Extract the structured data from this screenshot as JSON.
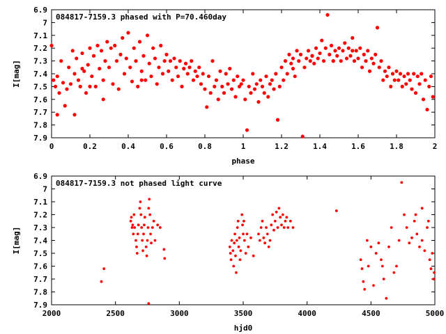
{
  "chart_data": [
    {
      "type": "scatter",
      "title": "084817-7159.3 phased with P=70.460day",
      "xlabel": "phase",
      "ylabel": "I[mag]",
      "xlim": [
        0,
        2
      ],
      "ylim": [
        6.9,
        7.9
      ],
      "y_inverted": true,
      "grid": false,
      "color": "#ff0000",
      "x_ticks": [
        "0",
        "0.2",
        "0.4",
        "0.6",
        "0.8",
        "1",
        "1.2",
        "1.4",
        "1.6",
        "1.8",
        "2"
      ],
      "y_ticks": [
        "6.9",
        "7",
        "7.1",
        "7.2",
        "7.3",
        "7.4",
        "7.5",
        "7.6",
        "7.7",
        "7.8",
        "7.9"
      ],
      "points": [
        [
          0.0,
          7.18
        ],
        [
          0.01,
          7.45
        ],
        [
          0.02,
          7.5
        ],
        [
          0.03,
          7.42
        ],
        [
          0.04,
          7.55
        ],
        [
          0.05,
          7.3
        ],
        [
          0.06,
          7.47
        ],
        [
          0.07,
          7.65
        ],
        [
          0.08,
          7.52
        ],
        [
          0.09,
          7.35
        ],
        [
          0.1,
          7.48
        ],
        [
          0.11,
          7.22
        ],
        [
          0.12,
          7.4
        ],
        [
          0.13,
          7.28
        ],
        [
          0.14,
          7.45
        ],
        [
          0.15,
          7.5
        ],
        [
          0.16,
          7.24
        ],
        [
          0.17,
          7.38
        ],
        [
          0.18,
          7.55
        ],
        [
          0.19,
          7.33
        ],
        [
          0.2,
          7.2
        ],
        [
          0.21,
          7.42
        ],
        [
          0.22,
          7.26
        ],
        [
          0.23,
          7.5
        ],
        [
          0.24,
          7.18
        ],
        [
          0.25,
          7.36
        ],
        [
          0.26,
          7.22
        ],
        [
          0.27,
          7.45
        ],
        [
          0.28,
          7.3
        ],
        [
          0.29,
          7.15
        ],
        [
          0.3,
          7.35
        ],
        [
          0.31,
          7.2
        ],
        [
          0.32,
          7.48
        ],
        [
          0.33,
          7.18
        ],
        [
          0.34,
          7.3
        ],
        [
          0.35,
          7.52
        ],
        [
          0.36,
          7.25
        ],
        [
          0.37,
          7.12
        ],
        [
          0.38,
          7.4
        ],
        [
          0.39,
          7.28
        ],
        [
          0.4,
          7.08
        ],
        [
          0.41,
          7.35
        ],
        [
          0.42,
          7.46
        ],
        [
          0.43,
          7.2
        ],
        [
          0.44,
          7.3
        ],
        [
          0.45,
          7.5
        ],
        [
          0.46,
          7.15
        ],
        [
          0.47,
          7.38
        ],
        [
          0.48,
          7.26
        ],
        [
          0.49,
          7.45
        ],
        [
          0.5,
          7.1
        ],
        [
          0.51,
          7.32
        ],
        [
          0.52,
          7.42
        ],
        [
          0.53,
          7.2
        ],
        [
          0.54,
          7.28
        ],
        [
          0.55,
          7.48
        ],
        [
          0.56,
          7.35
        ],
        [
          0.57,
          7.18
        ],
        [
          0.58,
          7.4
        ],
        [
          0.59,
          7.3
        ],
        [
          0.6,
          7.25
        ],
        [
          0.61,
          7.38
        ],
        [
          0.62,
          7.3
        ],
        [
          0.63,
          7.45
        ],
        [
          0.64,
          7.28
        ],
        [
          0.65,
          7.35
        ],
        [
          0.66,
          7.42
        ],
        [
          0.67,
          7.3
        ],
        [
          0.68,
          7.5
        ],
        [
          0.69,
          7.36
        ],
        [
          0.7,
          7.32
        ],
        [
          0.71,
          7.4
        ],
        [
          0.72,
          7.35
        ],
        [
          0.73,
          7.3
        ],
        [
          0.74,
          7.45
        ],
        [
          0.75,
          7.38
        ],
        [
          0.76,
          7.42
        ],
        [
          0.77,
          7.35
        ],
        [
          0.78,
          7.48
        ],
        [
          0.79,
          7.4
        ],
        [
          0.8,
          7.52
        ],
        [
          0.81,
          7.66
        ],
        [
          0.82,
          7.42
        ],
        [
          0.83,
          7.55
        ],
        [
          0.84,
          7.3
        ],
        [
          0.85,
          7.5
        ],
        [
          0.86,
          7.45
        ],
        [
          0.87,
          7.6
        ],
        [
          0.88,
          7.38
        ],
        [
          0.89,
          7.5
        ],
        [
          0.9,
          7.55
        ],
        [
          0.91,
          7.4
        ],
        [
          0.92,
          7.48
        ],
        [
          0.93,
          7.36
        ],
        [
          0.94,
          7.52
        ],
        [
          0.95,
          7.45
        ],
        [
          0.96,
          7.58
        ],
        [
          0.97,
          7.42
        ],
        [
          0.98,
          7.5
        ],
        [
          0.99,
          7.48
        ],
        [
          1.0,
          7.45
        ],
        [
          1.01,
          7.6
        ],
        [
          1.02,
          7.84
        ],
        [
          1.03,
          7.5
        ],
        [
          1.04,
          7.55
        ],
        [
          1.05,
          7.4
        ],
        [
          1.06,
          7.52
        ],
        [
          1.07,
          7.48
        ],
        [
          1.08,
          7.62
        ],
        [
          1.09,
          7.45
        ],
        [
          1.1,
          7.5
        ],
        [
          1.11,
          7.55
        ],
        [
          1.12,
          7.42
        ],
        [
          1.13,
          7.58
        ],
        [
          1.14,
          7.48
        ],
        [
          1.15,
          7.45
        ],
        [
          1.16,
          7.52
        ],
        [
          1.17,
          7.4
        ],
        [
          1.18,
          7.76
        ],
        [
          1.19,
          7.5
        ],
        [
          1.2,
          7.35
        ],
        [
          1.21,
          7.45
        ],
        [
          1.22,
          7.3
        ],
        [
          1.23,
          7.4
        ],
        [
          1.24,
          7.25
        ],
        [
          1.25,
          7.32
        ],
        [
          1.26,
          7.28
        ],
        [
          1.27,
          7.42
        ],
        [
          1.28,
          7.22
        ],
        [
          1.29,
          7.3
        ],
        [
          1.3,
          7.25
        ],
        [
          1.31,
          7.89
        ],
        [
          1.32,
          7.35
        ],
        [
          1.33,
          7.28
        ],
        [
          1.34,
          7.22
        ],
        [
          1.35,
          7.3
        ],
        [
          1.36,
          7.26
        ],
        [
          1.37,
          7.32
        ],
        [
          1.38,
          7.2
        ],
        [
          1.39,
          7.28
        ],
        [
          1.4,
          7.24
        ],
        [
          1.41,
          7.14
        ],
        [
          1.42,
          7.3
        ],
        [
          1.43,
          7.2
        ],
        [
          1.44,
          6.94
        ],
        [
          1.45,
          7.25
        ],
        [
          1.46,
          7.18
        ],
        [
          1.47,
          7.3
        ],
        [
          1.48,
          7.22
        ],
        [
          1.49,
          7.26
        ],
        [
          1.5,
          7.2
        ],
        [
          1.51,
          7.3
        ],
        [
          1.52,
          7.22
        ],
        [
          1.53,
          7.16
        ],
        [
          1.54,
          7.28
        ],
        [
          1.55,
          7.2
        ],
        [
          1.56,
          7.26
        ],
        [
          1.57,
          7.12
        ],
        [
          1.58,
          7.3
        ],
        [
          1.59,
          7.22
        ],
        [
          1.6,
          7.28
        ],
        [
          1.61,
          7.2
        ],
        [
          1.62,
          7.35
        ],
        [
          1.63,
          7.25
        ],
        [
          1.64,
          7.3
        ],
        [
          1.65,
          7.22
        ],
        [
          1.66,
          7.38
        ],
        [
          1.67,
          7.28
        ],
        [
          1.68,
          7.32
        ],
        [
          1.69,
          7.25
        ],
        [
          1.7,
          7.04
        ],
        [
          1.71,
          7.35
        ],
        [
          1.72,
          7.3
        ],
        [
          1.73,
          7.45
        ],
        [
          1.74,
          7.38
        ],
        [
          1.75,
          7.42
        ],
        [
          1.76,
          7.35
        ],
        [
          1.77,
          7.5
        ],
        [
          1.78,
          7.4
        ],
        [
          1.79,
          7.45
        ],
        [
          1.8,
          7.38
        ],
        [
          1.81,
          7.45
        ],
        [
          1.82,
          7.4
        ],
        [
          1.83,
          7.5
        ],
        [
          1.84,
          7.42
        ],
        [
          1.85,
          7.48
        ],
        [
          1.86,
          7.4
        ],
        [
          1.87,
          7.45
        ],
        [
          1.88,
          7.52
        ],
        [
          1.89,
          7.4
        ],
        [
          1.9,
          7.55
        ],
        [
          1.91,
          7.42
        ],
        [
          1.92,
          7.48
        ],
        [
          1.93,
          7.4
        ],
        [
          1.94,
          7.6
        ],
        [
          1.95,
          7.45
        ],
        [
          1.96,
          7.68
        ],
        [
          1.97,
          7.5
        ],
        [
          1.98,
          7.42
        ],
        [
          1.99,
          7.58
        ],
        [
          0.03,
          7.72
        ],
        [
          0.12,
          7.72
        ],
        [
          0.2,
          7.5
        ],
        [
          0.27,
          7.6
        ],
        [
          0.47,
          7.45
        ],
        [
          1.47,
          7.3
        ],
        [
          1.57,
          7.22
        ],
        [
          1.36,
          7.26
        ],
        [
          1.26,
          7.36
        ],
        [
          0.16,
          7.36
        ]
      ]
    },
    {
      "type": "scatter",
      "title": "084817-7159.3 not phased light curve",
      "xlabel": "hjd0",
      "ylabel": "I[mag]",
      "xlim": [
        2000,
        5000
      ],
      "ylim": [
        6.9,
        7.9
      ],
      "y_inverted": true,
      "grid": false,
      "color": "#ff0000",
      "x_ticks": [
        "2000",
        "2500",
        "3000",
        "3500",
        "4000",
        "4500",
        "5000"
      ],
      "y_ticks": [
        "6.9",
        "7",
        "7.1",
        "7.2",
        "7.3",
        "7.4",
        "7.5",
        "7.6",
        "7.7",
        "7.8",
        "7.9"
      ],
      "points": [
        [
          2390,
          7.72
        ],
        [
          2410,
          7.62
        ],
        [
          2620,
          7.25
        ],
        [
          2625,
          7.22
        ],
        [
          2630,
          7.3
        ],
        [
          2635,
          7.28
        ],
        [
          2640,
          7.35
        ],
        [
          2645,
          7.2
        ],
        [
          2650,
          7.3
        ],
        [
          2660,
          7.4
        ],
        [
          2665,
          7.45
        ],
        [
          2670,
          7.5
        ],
        [
          2675,
          7.35
        ],
        [
          2680,
          7.28
        ],
        [
          2690,
          7.15
        ],
        [
          2695,
          7.1
        ],
        [
          2700,
          7.2
        ],
        [
          2705,
          7.3
        ],
        [
          2710,
          7.4
        ],
        [
          2715,
          7.48
        ],
        [
          2720,
          7.35
        ],
        [
          2725,
          7.28
        ],
        [
          2730,
          7.22
        ],
        [
          2740,
          7.45
        ],
        [
          2745,
          7.52
        ],
        [
          2750,
          7.4
        ],
        [
          2755,
          7.3
        ],
        [
          2760,
          7.15
        ],
        [
          2765,
          7.08
        ],
        [
          2770,
          7.2
        ],
        [
          2775,
          7.35
        ],
        [
          2780,
          7.42
        ],
        [
          2790,
          7.3
        ],
        [
          2800,
          7.25
        ],
        [
          2810,
          7.4
        ],
        [
          2830,
          7.28
        ],
        [
          2850,
          7.3
        ],
        [
          2880,
          7.47
        ],
        [
          2885,
          7.54
        ],
        [
          2760,
          7.89
        ],
        [
          3395,
          7.45
        ],
        [
          3400,
          7.5
        ],
        [
          3405,
          7.55
        ],
        [
          3410,
          7.4
        ],
        [
          3420,
          7.48
        ],
        [
          3425,
          7.6
        ],
        [
          3430,
          7.42
        ],
        [
          3435,
          7.35
        ],
        [
          3440,
          7.52
        ],
        [
          3445,
          7.65
        ],
        [
          3450,
          7.4
        ],
        [
          3455,
          7.3
        ],
        [
          3460,
          7.25
        ],
        [
          3465,
          7.45
        ],
        [
          3470,
          7.38
        ],
        [
          3475,
          7.55
        ],
        [
          3480,
          7.48
        ],
        [
          3490,
          7.2
        ],
        [
          3495,
          7.28
        ],
        [
          3500,
          7.35
        ],
        [
          3505,
          7.25
        ],
        [
          3510,
          7.4
        ],
        [
          3520,
          7.5
        ],
        [
          3530,
          7.35
        ],
        [
          3540,
          7.45
        ],
        [
          3560,
          7.38
        ],
        [
          3580,
          7.52
        ],
        [
          3620,
          7.35
        ],
        [
          3630,
          7.4
        ],
        [
          3640,
          7.3
        ],
        [
          3650,
          7.25
        ],
        [
          3660,
          7.38
        ],
        [
          3670,
          7.42
        ],
        [
          3680,
          7.3
        ],
        [
          3690,
          7.35
        ],
        [
          3700,
          7.45
        ],
        [
          3710,
          7.4
        ],
        [
          3720,
          7.28
        ],
        [
          3730,
          7.2
        ],
        [
          3740,
          7.32
        ],
        [
          3750,
          7.25
        ],
        [
          3760,
          7.18
        ],
        [
          3770,
          7.3
        ],
        [
          3780,
          7.15
        ],
        [
          3790,
          7.22
        ],
        [
          3800,
          7.28
        ],
        [
          3810,
          7.2
        ],
        [
          3820,
          7.3
        ],
        [
          3830,
          7.25
        ],
        [
          3840,
          7.22
        ],
        [
          3850,
          7.3
        ],
        [
          3870,
          7.25
        ],
        [
          3890,
          7.3
        ],
        [
          4230,
          7.17
        ],
        [
          4420,
          7.55
        ],
        [
          4430,
          7.62
        ],
        [
          4440,
          7.72
        ],
        [
          4450,
          7.78
        ],
        [
          4470,
          7.4
        ],
        [
          4480,
          7.6
        ],
        [
          4500,
          7.45
        ],
        [
          4520,
          7.75
        ],
        [
          4540,
          7.5
        ],
        [
          4560,
          7.42
        ],
        [
          4580,
          7.55
        ],
        [
          4590,
          7.6
        ],
        [
          4600,
          7.7
        ],
        [
          4620,
          7.85
        ],
        [
          4640,
          7.45
        ],
        [
          4660,
          7.3
        ],
        [
          4680,
          7.65
        ],
        [
          4700,
          7.6
        ],
        [
          4720,
          7.4
        ],
        [
          4740,
          6.95
        ],
        [
          4760,
          7.2
        ],
        [
          4780,
          7.3
        ],
        [
          4800,
          7.42
        ],
        [
          4820,
          7.38
        ],
        [
          4840,
          7.25
        ],
        [
          4860,
          7.35
        ],
        [
          4880,
          7.45
        ],
        [
          4900,
          7.4
        ],
        [
          4920,
          7.48
        ],
        [
          4940,
          7.3
        ],
        [
          4960,
          7.55
        ],
        [
          4970,
          7.62
        ],
        [
          4980,
          7.5
        ],
        [
          4990,
          7.7
        ],
        [
          4995,
          7.65
        ],
        [
          4850,
          7.2
        ],
        [
          4900,
          7.15
        ],
        [
          4950,
          7.25
        ]
      ]
    }
  ]
}
